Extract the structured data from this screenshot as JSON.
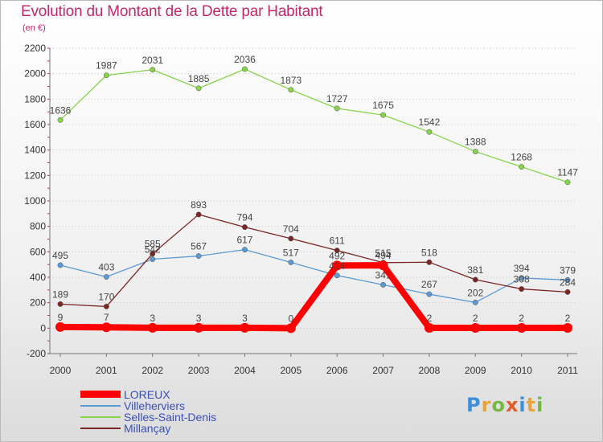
{
  "chart_data": {
    "type": "line",
    "title": "Evolution du Montant de la Dette par Habitant",
    "subtitle": "(en €)",
    "x": [
      "2000",
      "2001",
      "2002",
      "2003",
      "2004",
      "2005",
      "2006",
      "2007",
      "2008",
      "2009",
      "2010",
      "2011"
    ],
    "ylim": [
      -200,
      2200
    ],
    "yticks": [
      -200,
      0,
      200,
      400,
      600,
      800,
      1000,
      1200,
      1400,
      1600,
      1800,
      2000,
      2200
    ],
    "grid": "horizontal dotted",
    "legend_placement": "bottom-left",
    "series": [
      {
        "name": "LOREUX",
        "color": "#ff0000",
        "values": [
          9,
          7,
          3,
          3,
          3,
          0,
          492,
          494,
          2,
          2,
          2,
          2
        ]
      },
      {
        "name": "Villeherviers",
        "color": "#5b9bd5",
        "values": [
          495,
          403,
          542,
          567,
          617,
          517,
          414,
          341,
          267,
          202,
          394,
          379
        ]
      },
      {
        "name": "Selles-Saint-Denis",
        "color": "#86d44b",
        "values": [
          1636,
          1987,
          2031,
          1885,
          2036,
          1873,
          1727,
          1675,
          1542,
          1388,
          1268,
          1147
        ]
      },
      {
        "name": "Millançay",
        "color": "#7b2525",
        "values": [
          189,
          170,
          585,
          893,
          794,
          704,
          611,
          515,
          518,
          381,
          308,
          284
        ]
      }
    ]
  },
  "logo": {
    "text": [
      "P",
      "r",
      "o",
      "x",
      "i",
      "t",
      "i"
    ]
  }
}
